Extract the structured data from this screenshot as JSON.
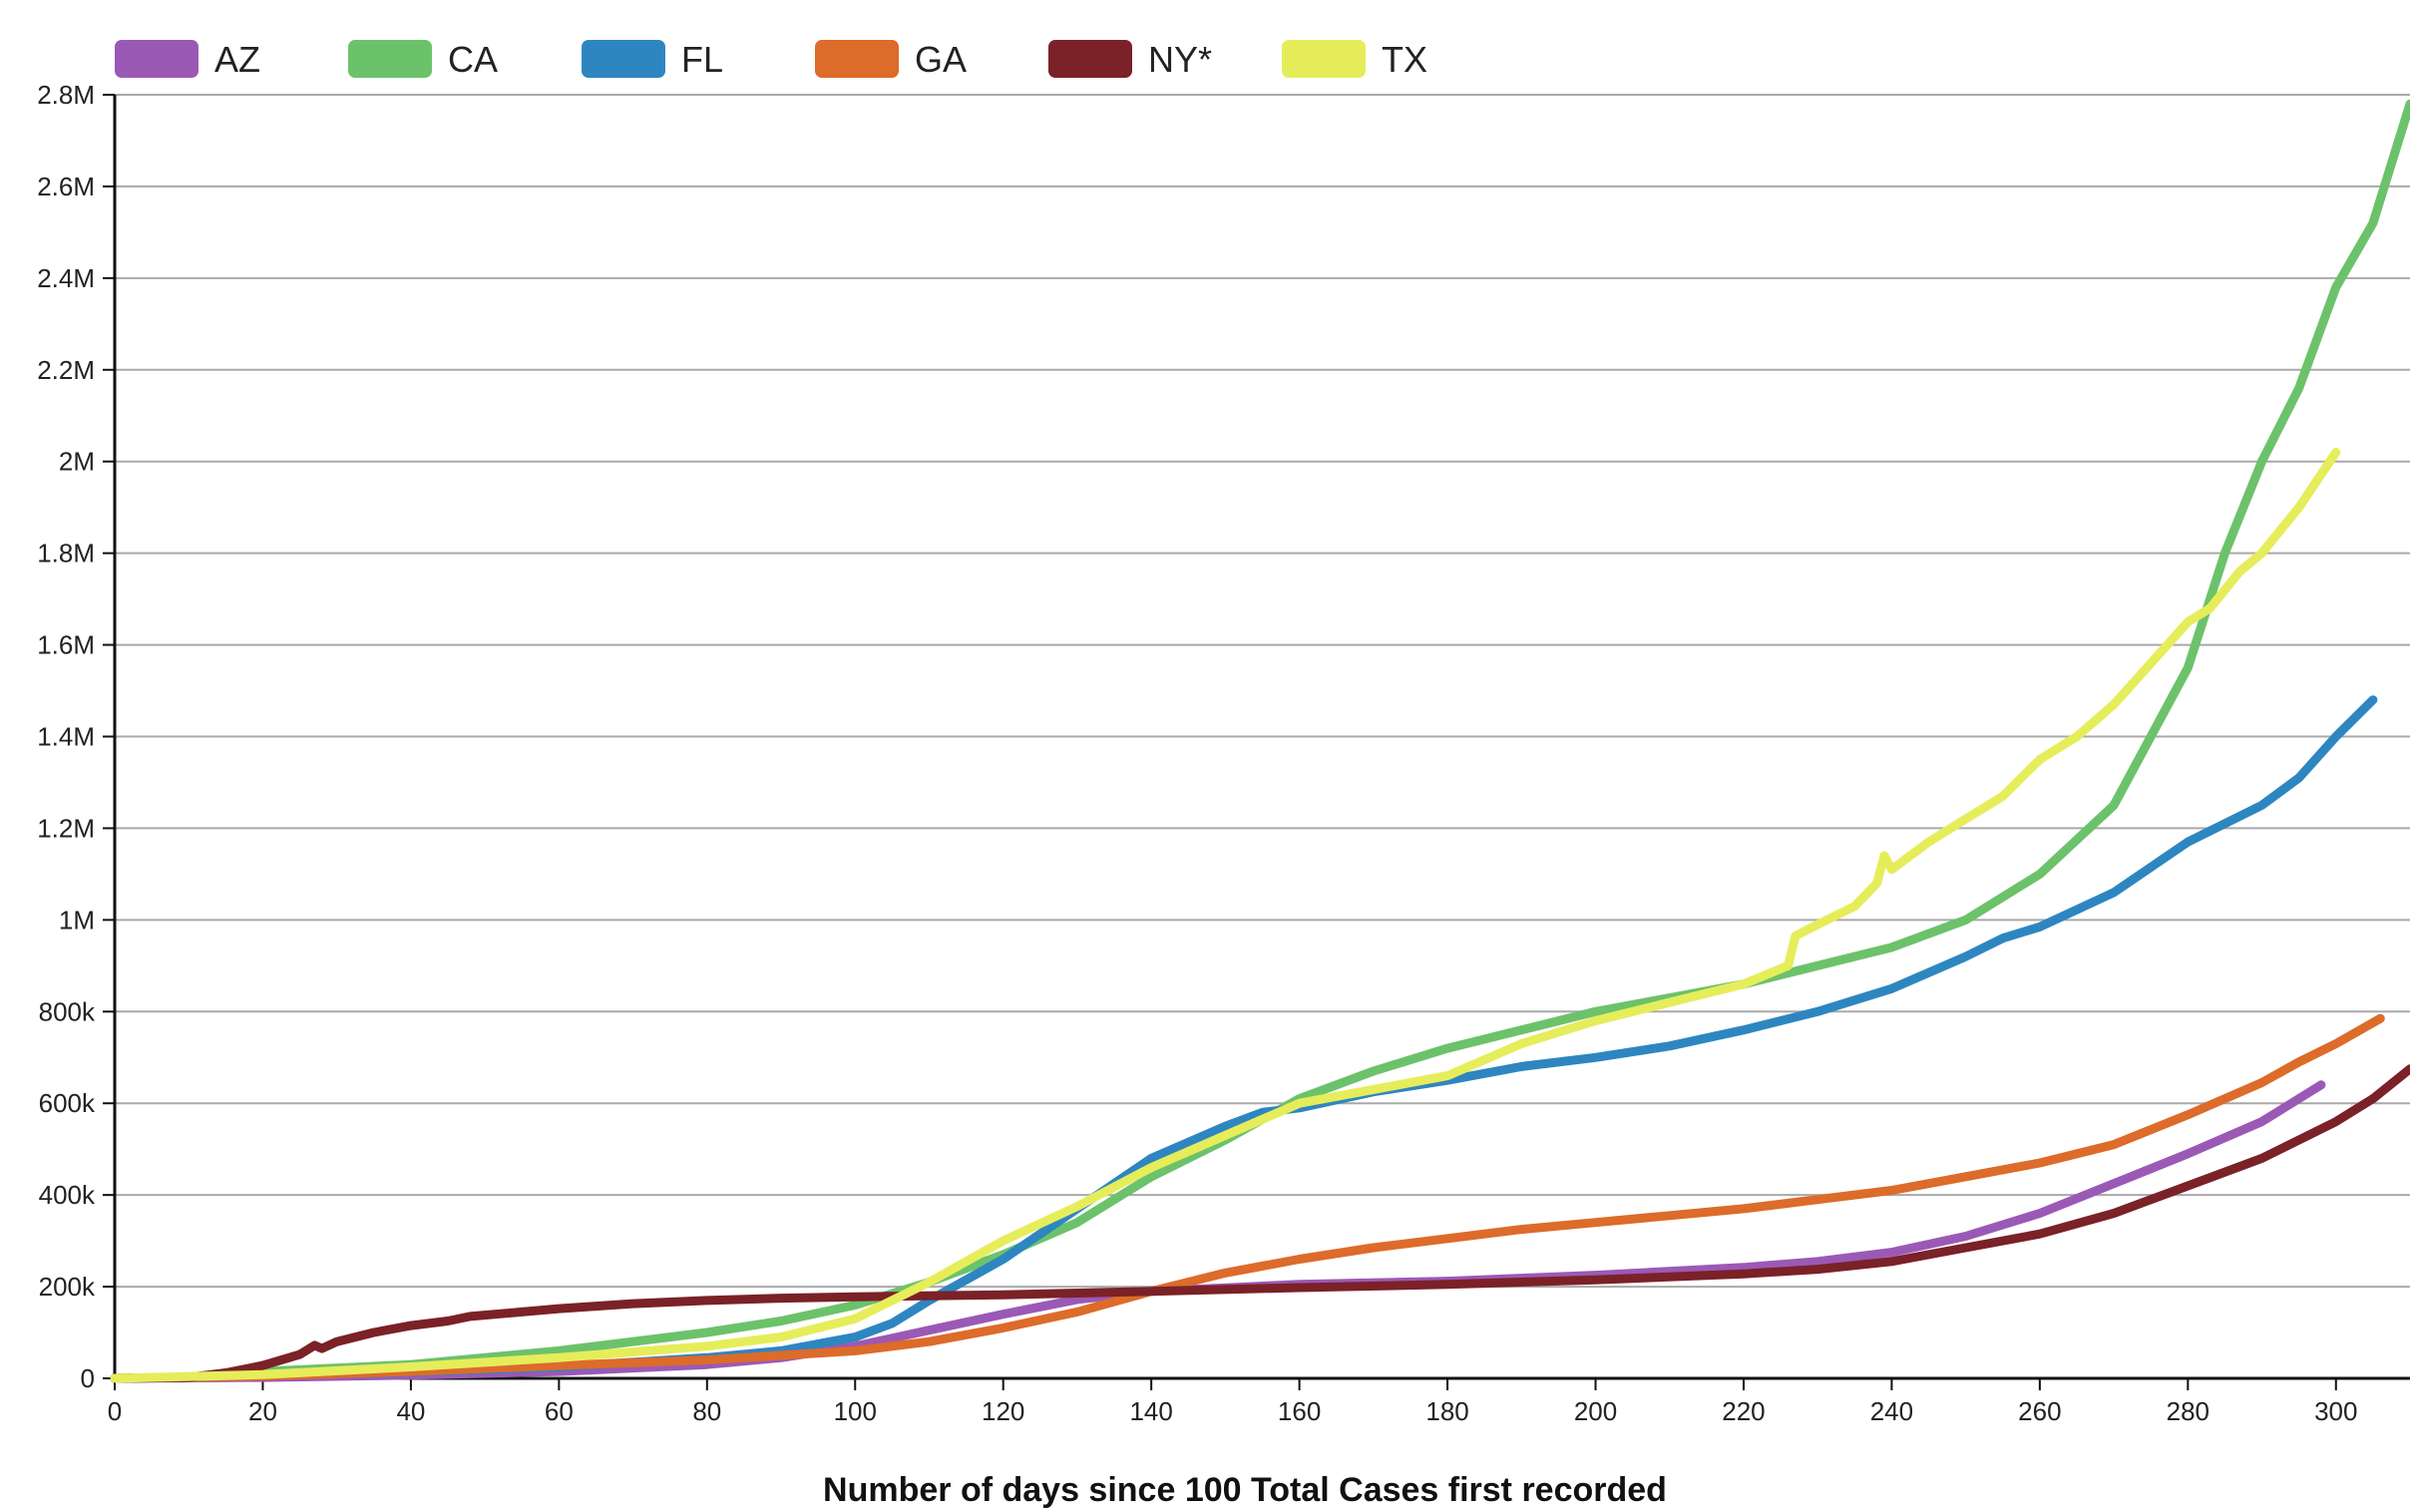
{
  "chart_data": {
    "type": "line",
    "title": "",
    "xlabel": "Number of days since 100 Total Cases first recorded",
    "ylabel": "",
    "xlim": [
      0,
      310
    ],
    "ylim": [
      0,
      2800000
    ],
    "x_ticks": [
      0,
      20,
      40,
      60,
      80,
      100,
      120,
      140,
      160,
      180,
      200,
      220,
      240,
      260,
      280,
      300
    ],
    "x_tick_labels": [
      "0",
      "20",
      "40",
      "60",
      "80",
      "100",
      "120",
      "140",
      "160",
      "180",
      "200",
      "220",
      "240",
      "260",
      "280",
      "300"
    ],
    "y_ticks": [
      0,
      200000,
      400000,
      600000,
      800000,
      1000000,
      1200000,
      1400000,
      1600000,
      1800000,
      2000000,
      2200000,
      2400000,
      2600000,
      2800000
    ],
    "y_tick_labels": [
      "0",
      "200k",
      "400k",
      "600k",
      "800k",
      "1M",
      "1.2M",
      "1.4M",
      "1.6M",
      "1.8M",
      "2M",
      "2.2M",
      "2.4M",
      "2.6M",
      "2.8M"
    ],
    "grid": true,
    "legend_position": "top",
    "series": [
      {
        "name": "AZ",
        "color": "#9b59b6",
        "points": [
          [
            0,
            0
          ],
          [
            20,
            2000
          ],
          [
            40,
            7000
          ],
          [
            60,
            15000
          ],
          [
            80,
            30000
          ],
          [
            90,
            45000
          ],
          [
            100,
            70000
          ],
          [
            110,
            105000
          ],
          [
            120,
            140000
          ],
          [
            130,
            172000
          ],
          [
            140,
            190000
          ],
          [
            160,
            205000
          ],
          [
            180,
            212000
          ],
          [
            200,
            225000
          ],
          [
            220,
            242000
          ],
          [
            230,
            255000
          ],
          [
            240,
            275000
          ],
          [
            250,
            310000
          ],
          [
            260,
            360000
          ],
          [
            270,
            425000
          ],
          [
            280,
            490000
          ],
          [
            290,
            560000
          ],
          [
            298,
            640000
          ]
        ]
      },
      {
        "name": "CA",
        "color": "#6cc26a",
        "points": [
          [
            0,
            0
          ],
          [
            10,
            3000
          ],
          [
            20,
            15000
          ],
          [
            40,
            30000
          ],
          [
            60,
            60000
          ],
          [
            80,
            100000
          ],
          [
            90,
            125000
          ],
          [
            100,
            160000
          ],
          [
            110,
            210000
          ],
          [
            120,
            270000
          ],
          [
            130,
            340000
          ],
          [
            140,
            440000
          ],
          [
            150,
            520000
          ],
          [
            160,
            610000
          ],
          [
            170,
            670000
          ],
          [
            180,
            720000
          ],
          [
            190,
            760000
          ],
          [
            200,
            800000
          ],
          [
            210,
            830000
          ],
          [
            220,
            860000
          ],
          [
            230,
            900000
          ],
          [
            240,
            940000
          ],
          [
            250,
            1000000
          ],
          [
            260,
            1100000
          ],
          [
            270,
            1250000
          ],
          [
            280,
            1550000
          ],
          [
            285,
            1800000
          ],
          [
            290,
            2000000
          ],
          [
            295,
            2160000
          ],
          [
            300,
            2380000
          ],
          [
            305,
            2520000
          ],
          [
            310,
            2780000
          ]
        ]
      },
      {
        "name": "FL",
        "color": "#2e86c1",
        "points": [
          [
            0,
            0
          ],
          [
            10,
            2000
          ],
          [
            20,
            6000
          ],
          [
            40,
            14000
          ],
          [
            60,
            25000
          ],
          [
            80,
            45000
          ],
          [
            90,
            60000
          ],
          [
            100,
            90000
          ],
          [
            105,
            120000
          ],
          [
            110,
            170000
          ],
          [
            120,
            260000
          ],
          [
            130,
            370000
          ],
          [
            140,
            480000
          ],
          [
            150,
            550000
          ],
          [
            155,
            580000
          ],
          [
            160,
            590000
          ],
          [
            170,
            625000
          ],
          [
            180,
            650000
          ],
          [
            190,
            680000
          ],
          [
            200,
            700000
          ],
          [
            210,
            725000
          ],
          [
            220,
            760000
          ],
          [
            230,
            800000
          ],
          [
            240,
            850000
          ],
          [
            250,
            920000
          ],
          [
            255,
            960000
          ],
          [
            260,
            985000
          ],
          [
            270,
            1060000
          ],
          [
            280,
            1170000
          ],
          [
            290,
            1250000
          ],
          [
            295,
            1310000
          ],
          [
            300,
            1400000
          ],
          [
            305,
            1480000
          ]
        ]
      },
      {
        "name": "GA",
        "color": "#dd6b2a",
        "points": [
          [
            0,
            0
          ],
          [
            20,
            5000
          ],
          [
            40,
            15000
          ],
          [
            60,
            28000
          ],
          [
            80,
            40000
          ],
          [
            100,
            60000
          ],
          [
            110,
            80000
          ],
          [
            120,
            110000
          ],
          [
            130,
            145000
          ],
          [
            140,
            190000
          ],
          [
            150,
            230000
          ],
          [
            160,
            260000
          ],
          [
            170,
            285000
          ],
          [
            180,
            305000
          ],
          [
            190,
            325000
          ],
          [
            200,
            340000
          ],
          [
            210,
            355000
          ],
          [
            220,
            370000
          ],
          [
            230,
            390000
          ],
          [
            240,
            410000
          ],
          [
            250,
            440000
          ],
          [
            260,
            470000
          ],
          [
            270,
            510000
          ],
          [
            280,
            575000
          ],
          [
            285,
            610000
          ],
          [
            290,
            645000
          ],
          [
            295,
            690000
          ],
          [
            300,
            730000
          ],
          [
            306,
            785000
          ]
        ]
      },
      {
        "name": "NY*",
        "color": "#7b2128",
        "points": [
          [
            0,
            0
          ],
          [
            10,
            2000
          ],
          [
            15,
            12000
          ],
          [
            20,
            28000
          ],
          [
            25,
            52000
          ],
          [
            27,
            72000
          ],
          [
            28,
            65000
          ],
          [
            30,
            80000
          ],
          [
            35,
            100000
          ],
          [
            40,
            115000
          ],
          [
            45,
            125000
          ],
          [
            48,
            135000
          ],
          [
            55,
            145000
          ],
          [
            60,
            152000
          ],
          [
            70,
            163000
          ],
          [
            80,
            170000
          ],
          [
            90,
            175000
          ],
          [
            100,
            178000
          ],
          [
            120,
            182000
          ],
          [
            140,
            190000
          ],
          [
            160,
            198000
          ],
          [
            180,
            205000
          ],
          [
            200,
            215000
          ],
          [
            220,
            228000
          ],
          [
            230,
            238000
          ],
          [
            240,
            255000
          ],
          [
            250,
            285000
          ],
          [
            260,
            315000
          ],
          [
            270,
            360000
          ],
          [
            280,
            420000
          ],
          [
            290,
            480000
          ],
          [
            300,
            560000
          ],
          [
            305,
            610000
          ],
          [
            310,
            675000
          ]
        ]
      },
      {
        "name": "TX",
        "color": "#e6ed5a",
        "points": [
          [
            0,
            0
          ],
          [
            20,
            8000
          ],
          [
            40,
            25000
          ],
          [
            60,
            45000
          ],
          [
            80,
            70000
          ],
          [
            90,
            90000
          ],
          [
            100,
            130000
          ],
          [
            110,
            210000
          ],
          [
            120,
            300000
          ],
          [
            130,
            375000
          ],
          [
            140,
            460000
          ],
          [
            150,
            530000
          ],
          [
            160,
            600000
          ],
          [
            170,
            630000
          ],
          [
            180,
            660000
          ],
          [
            190,
            730000
          ],
          [
            200,
            780000
          ],
          [
            210,
            820000
          ],
          [
            220,
            860000
          ],
          [
            226,
            900000
          ],
          [
            227,
            965000
          ],
          [
            230,
            990000
          ],
          [
            235,
            1030000
          ],
          [
            238,
            1080000
          ],
          [
            239,
            1140000
          ],
          [
            240,
            1110000
          ],
          [
            245,
            1170000
          ],
          [
            250,
            1220000
          ],
          [
            255,
            1270000
          ],
          [
            260,
            1350000
          ],
          [
            265,
            1400000
          ],
          [
            270,
            1470000
          ],
          [
            275,
            1560000
          ],
          [
            280,
            1650000
          ],
          [
            283,
            1680000
          ],
          [
            287,
            1760000
          ],
          [
            290,
            1800000
          ],
          [
            295,
            1900000
          ],
          [
            300,
            2020000
          ]
        ]
      }
    ]
  }
}
